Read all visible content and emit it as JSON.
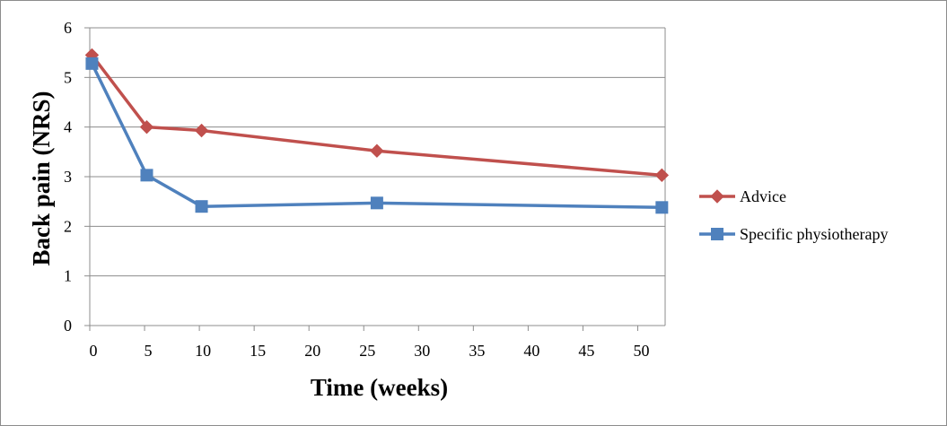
{
  "chart_data": {
    "type": "line",
    "title": "",
    "xlabel": "Time (weeks)",
    "ylabel": "Back pain (NRS)",
    "xlim": [
      0,
      52.5
    ],
    "ylim": [
      0,
      6
    ],
    "x_ticks": [
      "0",
      "5",
      "10",
      "15",
      "20",
      "25",
      "30",
      "35",
      "40",
      "45",
      "50"
    ],
    "y_ticks": [
      "0",
      "1",
      "2",
      "3",
      "4",
      "5",
      "6"
    ],
    "grid": "horizontal",
    "legend_position": "right",
    "series": [
      {
        "name": "Advice",
        "color": "#c0504d",
        "marker": "diamond",
        "x": [
          0.2,
          5.2,
          10.2,
          26.2,
          52.2
        ],
        "y": [
          5.45,
          4.0,
          3.93,
          3.52,
          3.03
        ]
      },
      {
        "name": "Specific physiotherapy",
        "color": "#4f81bd",
        "marker": "square",
        "x": [
          0.2,
          5.2,
          10.2,
          26.2,
          52.2
        ],
        "y": [
          5.28,
          3.03,
          2.4,
          2.47,
          2.38
        ]
      }
    ]
  }
}
